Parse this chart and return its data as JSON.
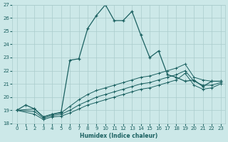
{
  "xlabel": "Humidex (Indice chaleur)",
  "bg_color": "#cce8e8",
  "grid_color": "#aacccc",
  "line_color": "#1a6060",
  "xlim": [
    -0.5,
    23.5
  ],
  "ylim": [
    18,
    27
  ],
  "xticks": [
    0,
    1,
    2,
    3,
    4,
    5,
    6,
    7,
    8,
    9,
    10,
    11,
    12,
    13,
    14,
    15,
    16,
    17,
    18,
    19,
    20,
    21,
    22,
    23
  ],
  "yticks": [
    18,
    19,
    20,
    21,
    22,
    23,
    24,
    25,
    26,
    27
  ],
  "line1_x": [
    0,
    1,
    2,
    3,
    4,
    5,
    6,
    7,
    8,
    9,
    10,
    11,
    12,
    13,
    14,
    15,
    16,
    17,
    18,
    19,
    20,
    21,
    22,
    23
  ],
  "line1_y": [
    19.0,
    19.4,
    19.1,
    18.5,
    18.7,
    18.85,
    22.8,
    22.9,
    25.2,
    26.2,
    27.0,
    25.8,
    25.8,
    26.5,
    24.7,
    23.0,
    23.5,
    21.7,
    21.5,
    21.2,
    21.3,
    20.8,
    21.2,
    21.2
  ],
  "line2_x": [
    0,
    2,
    3,
    4,
    5,
    6,
    7,
    8,
    9,
    10,
    11,
    12,
    13,
    14,
    15,
    16,
    17,
    18,
    19,
    20,
    21,
    22,
    23
  ],
  "line2_y": [
    19.0,
    19.1,
    18.5,
    18.7,
    18.8,
    19.3,
    19.8,
    20.2,
    20.5,
    20.7,
    20.9,
    21.1,
    21.3,
    21.5,
    21.6,
    21.8,
    22.0,
    22.2,
    22.5,
    21.5,
    21.3,
    21.2,
    21.2
  ],
  "line3_x": [
    0,
    2,
    3,
    4,
    5,
    6,
    7,
    8,
    9,
    10,
    11,
    12,
    13,
    14,
    15,
    16,
    17,
    18,
    19,
    20,
    21,
    22,
    23
  ],
  "line3_y": [
    19.0,
    18.9,
    18.4,
    18.6,
    18.7,
    19.0,
    19.4,
    19.7,
    20.0,
    20.2,
    20.4,
    20.6,
    20.8,
    21.0,
    21.1,
    21.3,
    21.5,
    21.7,
    22.0,
    21.2,
    20.9,
    20.9,
    21.1
  ],
  "line4_x": [
    0,
    2,
    3,
    4,
    5,
    6,
    7,
    8,
    9,
    10,
    11,
    12,
    13,
    14,
    15,
    16,
    17,
    18,
    19,
    20,
    21,
    22,
    23
  ],
  "line4_y": [
    19.0,
    18.7,
    18.3,
    18.5,
    18.55,
    18.8,
    19.1,
    19.4,
    19.6,
    19.8,
    20.0,
    20.2,
    20.4,
    20.6,
    20.7,
    20.9,
    21.1,
    21.3,
    21.8,
    20.9,
    20.6,
    20.7,
    21.0
  ]
}
